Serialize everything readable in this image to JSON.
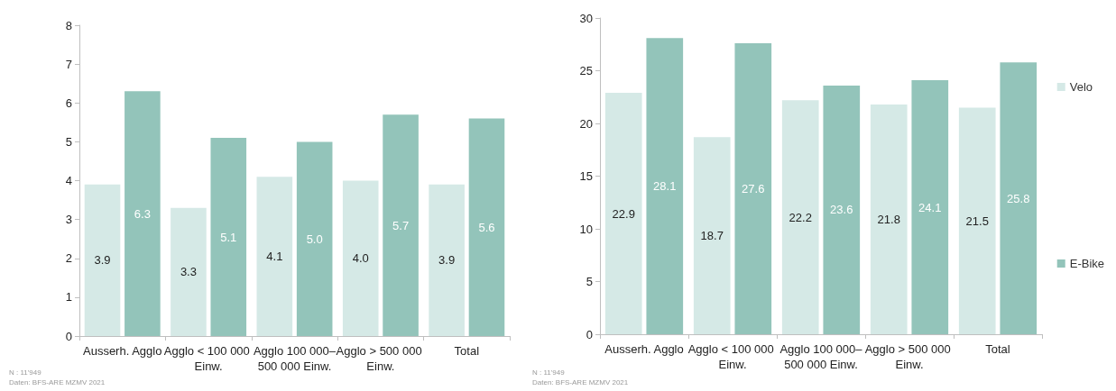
{
  "chart_data": [
    {
      "type": "bar",
      "categories": [
        "Ausserh. Agglo",
        "Agglo < 100 000 Einw.",
        "Agglo 100 000–500 000 Einw.",
        "Agglo > 500 000 Einw.",
        "Total"
      ],
      "series": [
        {
          "color": "#d5e9e6",
          "values": [
            3.9,
            3.3,
            4.1,
            4.0,
            3.9
          ],
          "value_labels": [
            "3.9",
            "3.3",
            "4.1",
            "4.0",
            "3.9"
          ]
        },
        {
          "color": "#93c4ba",
          "values": [
            6.3,
            5.1,
            5.0,
            5.7,
            5.6
          ],
          "value_labels": [
            "6.3",
            "5.1",
            "5.0",
            "5.7",
            "5.6"
          ]
        }
      ],
      "ylim": [
        0,
        8
      ],
      "yticks": [
        0,
        1,
        2,
        3,
        4,
        5,
        6,
        7,
        8
      ],
      "grid": false,
      "legend": false,
      "annotations": [
        "N : 11'949",
        "Daten: BFS-ARE MZMV 2021"
      ]
    },
    {
      "type": "bar",
      "categories": [
        "Ausserh. Agglo",
        "Agglo < 100 000 Einw.",
        "Agglo 100 000–500 000 Einw.",
        "Agglo > 500 000 Einw.",
        "Total"
      ],
      "series": [
        {
          "name": "Velo",
          "color": "#d5e9e6",
          "values": [
            22.9,
            18.7,
            22.2,
            21.8,
            21.5
          ]
        },
        {
          "name": "E-Bike",
          "color": "#93c4ba",
          "values": [
            28.1,
            27.6,
            23.6,
            24.1,
            25.8
          ]
        }
      ],
      "ylim": [
        0,
        30
      ],
      "yticks": [
        0,
        5,
        10,
        15,
        20,
        25,
        30
      ],
      "grid": false,
      "legend": "right",
      "data_labels": true,
      "annotations": [
        "N : 11'949",
        "Daten: BFS-ARE MZMV 2021"
      ]
    }
  ]
}
